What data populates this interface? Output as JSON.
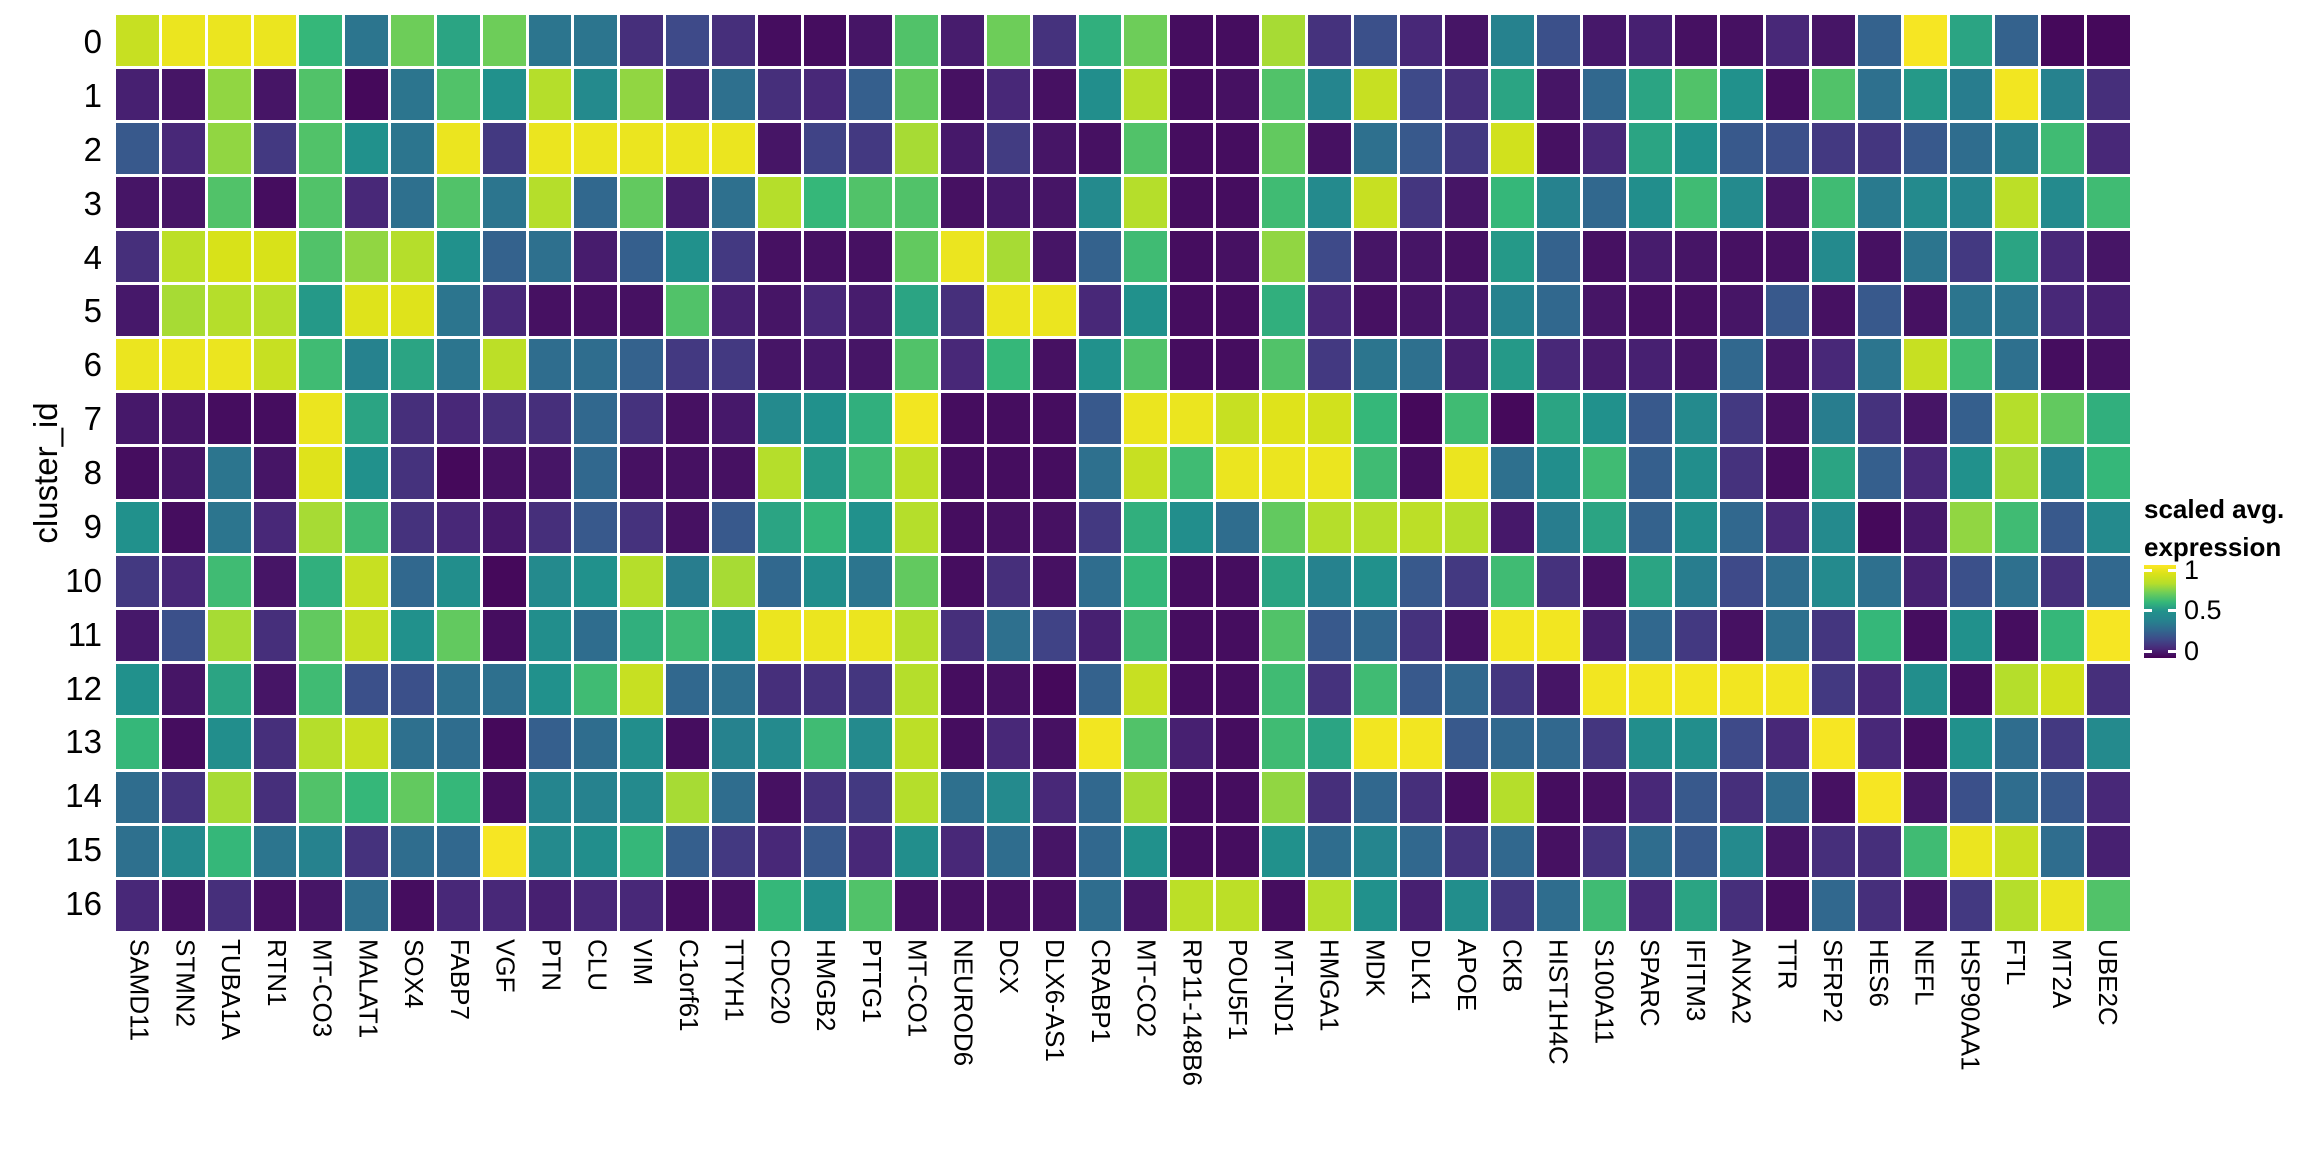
{
  "chart_data": {
    "type": "heatmap",
    "title": "",
    "xlabel": "",
    "ylabel": "cluster_id",
    "colormap": "viridis",
    "value_range": [
      0,
      1
    ],
    "grid": false,
    "legend": {
      "position": "right",
      "title_line1": "scaled avg.",
      "title_line2": "expression",
      "ticks": [
        {
          "label": "1",
          "value": 1.0
        },
        {
          "label": "0.5",
          "value": 0.5
        },
        {
          "label": "0",
          "value": 0.0
        }
      ]
    },
    "categories_y": [
      "0",
      "1",
      "2",
      "3",
      "4",
      "5",
      "6",
      "7",
      "8",
      "9",
      "10",
      "11",
      "12",
      "13",
      "14",
      "15",
      "16"
    ],
    "categories_x": [
      "SAMD11",
      "STMN2",
      "TUBA1A",
      "RTN1",
      "MT-CO3",
      "MALAT1",
      "SOX4",
      "FABP7",
      "VGF",
      "PTN",
      "CLU",
      "VIM",
      "C1orf61",
      "TTYH1",
      "CDC20",
      "HMGB2",
      "PTTG1",
      "MT-CO1",
      "NEUROD6",
      "DCX",
      "DLX6-AS1",
      "CRABP1",
      "MT-CO2",
      "RP11-148B6",
      "POU5F1",
      "MT-ND1",
      "HMGA1",
      "MDK",
      "DLK1",
      "APOE",
      "CKB",
      "HIST1H4C",
      "S100A11",
      "SPARC",
      "IFITM3",
      "ANXA2",
      "TTR",
      "SFRP2",
      "HES6",
      "NEFL",
      "HSP90AA1",
      "FTL",
      "MT2A",
      "UBE2C"
    ],
    "values": [
      [
        0.85,
        0.95,
        0.95,
        0.95,
        0.6,
        0.35,
        0.7,
        0.55,
        0.7,
        0.35,
        0.35,
        0.12,
        0.2,
        0.12,
        0.03,
        0.03,
        0.05,
        0.65,
        0.07,
        0.7,
        0.13,
        0.58,
        0.7,
        0.03,
        0.03,
        0.78,
        0.13,
        0.22,
        0.1,
        0.05,
        0.4,
        0.22,
        0.06,
        0.08,
        0.04,
        0.04,
        0.1,
        0.05,
        0.28,
        0.98,
        0.55,
        0.28,
        0.02,
        0.02
      ],
      [
        0.08,
        0.05,
        0.75,
        0.05,
        0.65,
        0.02,
        0.35,
        0.65,
        0.5,
        0.8,
        0.45,
        0.75,
        0.08,
        0.33,
        0.12,
        0.1,
        0.27,
        0.68,
        0.04,
        0.1,
        0.04,
        0.48,
        0.8,
        0.03,
        0.04,
        0.65,
        0.42,
        0.85,
        0.2,
        0.12,
        0.55,
        0.05,
        0.3,
        0.55,
        0.65,
        0.5,
        0.03,
        0.65,
        0.33,
        0.52,
        0.38,
        0.97,
        0.4,
        0.12
      ],
      [
        0.25,
        0.1,
        0.75,
        0.15,
        0.65,
        0.5,
        0.35,
        0.95,
        0.15,
        0.95,
        0.95,
        0.95,
        0.95,
        0.95,
        0.05,
        0.18,
        0.15,
        0.78,
        0.06,
        0.16,
        0.05,
        0.04,
        0.65,
        0.03,
        0.03,
        0.68,
        0.04,
        0.33,
        0.25,
        0.15,
        0.88,
        0.04,
        0.1,
        0.55,
        0.5,
        0.25,
        0.22,
        0.15,
        0.14,
        0.25,
        0.32,
        0.38,
        0.62,
        0.1
      ],
      [
        0.05,
        0.05,
        0.65,
        0.03,
        0.65,
        0.1,
        0.33,
        0.65,
        0.35,
        0.8,
        0.3,
        0.68,
        0.07,
        0.33,
        0.8,
        0.6,
        0.65,
        0.65,
        0.04,
        0.06,
        0.05,
        0.45,
        0.8,
        0.03,
        0.03,
        0.62,
        0.45,
        0.85,
        0.14,
        0.05,
        0.6,
        0.4,
        0.3,
        0.48,
        0.62,
        0.45,
        0.05,
        0.62,
        0.37,
        0.45,
        0.42,
        0.82,
        0.45,
        0.62
      ],
      [
        0.12,
        0.82,
        0.9,
        0.9,
        0.65,
        0.75,
        0.8,
        0.5,
        0.28,
        0.33,
        0.07,
        0.27,
        0.5,
        0.15,
        0.04,
        0.04,
        0.04,
        0.68,
        0.95,
        0.78,
        0.05,
        0.28,
        0.62,
        0.03,
        0.04,
        0.75,
        0.2,
        0.05,
        0.05,
        0.04,
        0.52,
        0.28,
        0.04,
        0.07,
        0.05,
        0.04,
        0.04,
        0.45,
        0.04,
        0.35,
        0.15,
        0.55,
        0.1,
        0.05
      ],
      [
        0.06,
        0.78,
        0.8,
        0.8,
        0.52,
        0.92,
        0.92,
        0.35,
        0.1,
        0.04,
        0.04,
        0.04,
        0.65,
        0.08,
        0.05,
        0.1,
        0.07,
        0.55,
        0.12,
        0.95,
        0.95,
        0.1,
        0.5,
        0.03,
        0.03,
        0.58,
        0.1,
        0.04,
        0.05,
        0.06,
        0.4,
        0.3,
        0.05,
        0.04,
        0.04,
        0.05,
        0.25,
        0.04,
        0.25,
        0.04,
        0.35,
        0.35,
        0.1,
        0.08
      ],
      [
        0.95,
        0.95,
        0.95,
        0.85,
        0.62,
        0.4,
        0.55,
        0.35,
        0.82,
        0.32,
        0.32,
        0.28,
        0.15,
        0.15,
        0.05,
        0.06,
        0.05,
        0.65,
        0.1,
        0.6,
        0.04,
        0.5,
        0.65,
        0.03,
        0.03,
        0.65,
        0.15,
        0.35,
        0.33,
        0.07,
        0.52,
        0.1,
        0.07,
        0.08,
        0.05,
        0.3,
        0.05,
        0.1,
        0.35,
        0.85,
        0.62,
        0.33,
        0.03,
        0.04
      ],
      [
        0.06,
        0.05,
        0.03,
        0.03,
        0.95,
        0.55,
        0.12,
        0.1,
        0.12,
        0.12,
        0.3,
        0.13,
        0.04,
        0.06,
        0.45,
        0.5,
        0.58,
        0.97,
        0.03,
        0.03,
        0.03,
        0.25,
        0.95,
        0.95,
        0.85,
        0.92,
        0.88,
        0.6,
        0.02,
        0.62,
        0.02,
        0.55,
        0.5,
        0.25,
        0.45,
        0.15,
        0.04,
        0.38,
        0.13,
        0.05,
        0.27,
        0.8,
        0.68,
        0.58
      ],
      [
        0.03,
        0.05,
        0.35,
        0.05,
        0.92,
        0.5,
        0.13,
        0.02,
        0.04,
        0.05,
        0.3,
        0.04,
        0.04,
        0.04,
        0.8,
        0.52,
        0.62,
        0.82,
        0.03,
        0.03,
        0.03,
        0.33,
        0.85,
        0.62,
        0.95,
        0.95,
        0.95,
        0.62,
        0.03,
        0.95,
        0.33,
        0.48,
        0.62,
        0.27,
        0.48,
        0.13,
        0.03,
        0.55,
        0.27,
        0.1,
        0.5,
        0.78,
        0.4,
        0.6
      ],
      [
        0.5,
        0.03,
        0.35,
        0.1,
        0.78,
        0.62,
        0.13,
        0.1,
        0.06,
        0.12,
        0.25,
        0.13,
        0.04,
        0.25,
        0.55,
        0.6,
        0.5,
        0.8,
        0.03,
        0.04,
        0.04,
        0.15,
        0.58,
        0.48,
        0.32,
        0.68,
        0.8,
        0.8,
        0.82,
        0.8,
        0.06,
        0.38,
        0.55,
        0.28,
        0.48,
        0.3,
        0.1,
        0.45,
        0.02,
        0.06,
        0.75,
        0.62,
        0.25,
        0.45
      ],
      [
        0.15,
        0.1,
        0.62,
        0.05,
        0.58,
        0.85,
        0.3,
        0.48,
        0.02,
        0.45,
        0.5,
        0.8,
        0.38,
        0.78,
        0.3,
        0.48,
        0.35,
        0.68,
        0.03,
        0.12,
        0.04,
        0.32,
        0.6,
        0.03,
        0.03,
        0.55,
        0.4,
        0.5,
        0.25,
        0.15,
        0.62,
        0.13,
        0.04,
        0.55,
        0.38,
        0.2,
        0.32,
        0.45,
        0.33,
        0.08,
        0.22,
        0.33,
        0.12,
        0.3
      ],
      [
        0.06,
        0.22,
        0.78,
        0.12,
        0.68,
        0.85,
        0.5,
        0.68,
        0.03,
        0.48,
        0.32,
        0.58,
        0.62,
        0.48,
        0.95,
        0.95,
        0.95,
        0.8,
        0.12,
        0.33,
        0.18,
        0.08,
        0.62,
        0.03,
        0.03,
        0.65,
        0.25,
        0.3,
        0.13,
        0.04,
        0.97,
        0.97,
        0.07,
        0.3,
        0.15,
        0.04,
        0.33,
        0.14,
        0.6,
        0.03,
        0.5,
        0.03,
        0.6,
        0.98
      ],
      [
        0.5,
        0.05,
        0.55,
        0.05,
        0.62,
        0.22,
        0.22,
        0.33,
        0.33,
        0.5,
        0.62,
        0.85,
        0.3,
        0.33,
        0.12,
        0.13,
        0.14,
        0.8,
        0.03,
        0.04,
        0.02,
        0.28,
        0.85,
        0.03,
        0.03,
        0.62,
        0.13,
        0.62,
        0.25,
        0.3,
        0.14,
        0.05,
        0.97,
        0.97,
        0.97,
        0.97,
        0.97,
        0.15,
        0.1,
        0.48,
        0.03,
        0.8,
        0.88,
        0.12
      ],
      [
        0.6,
        0.03,
        0.48,
        0.12,
        0.8,
        0.85,
        0.33,
        0.32,
        0.02,
        0.27,
        0.32,
        0.48,
        0.03,
        0.4,
        0.45,
        0.62,
        0.45,
        0.82,
        0.03,
        0.1,
        0.04,
        0.97,
        0.65,
        0.08,
        0.03,
        0.62,
        0.55,
        0.97,
        0.97,
        0.25,
        0.3,
        0.3,
        0.14,
        0.48,
        0.48,
        0.2,
        0.1,
        0.98,
        0.1,
        0.03,
        0.5,
        0.32,
        0.15,
        0.45
      ],
      [
        0.32,
        0.13,
        0.78,
        0.12,
        0.65,
        0.6,
        0.68,
        0.6,
        0.03,
        0.42,
        0.4,
        0.45,
        0.78,
        0.32,
        0.04,
        0.13,
        0.15,
        0.8,
        0.33,
        0.45,
        0.1,
        0.3,
        0.78,
        0.03,
        0.03,
        0.75,
        0.12,
        0.3,
        0.12,
        0.03,
        0.8,
        0.03,
        0.04,
        0.1,
        0.25,
        0.12,
        0.32,
        0.04,
        0.98,
        0.05,
        0.22,
        0.32,
        0.25,
        0.1
      ],
      [
        0.33,
        0.45,
        0.6,
        0.35,
        0.4,
        0.13,
        0.32,
        0.3,
        0.98,
        0.45,
        0.48,
        0.6,
        0.27,
        0.15,
        0.1,
        0.25,
        0.1,
        0.48,
        0.1,
        0.32,
        0.05,
        0.3,
        0.5,
        0.03,
        0.03,
        0.5,
        0.32,
        0.42,
        0.3,
        0.13,
        0.3,
        0.04,
        0.13,
        0.32,
        0.25,
        0.45,
        0.05,
        0.12,
        0.12,
        0.62,
        0.95,
        0.85,
        0.32,
        0.08
      ],
      [
        0.1,
        0.04,
        0.12,
        0.04,
        0.05,
        0.33,
        0.03,
        0.1,
        0.1,
        0.08,
        0.1,
        0.1,
        0.03,
        0.04,
        0.6,
        0.48,
        0.65,
        0.04,
        0.04,
        0.04,
        0.04,
        0.32,
        0.05,
        0.82,
        0.82,
        0.03,
        0.8,
        0.5,
        0.08,
        0.48,
        0.14,
        0.32,
        0.62,
        0.1,
        0.55,
        0.12,
        0.03,
        0.3,
        0.12,
        0.05,
        0.15,
        0.8,
        0.95,
        0.65
      ]
    ]
  }
}
